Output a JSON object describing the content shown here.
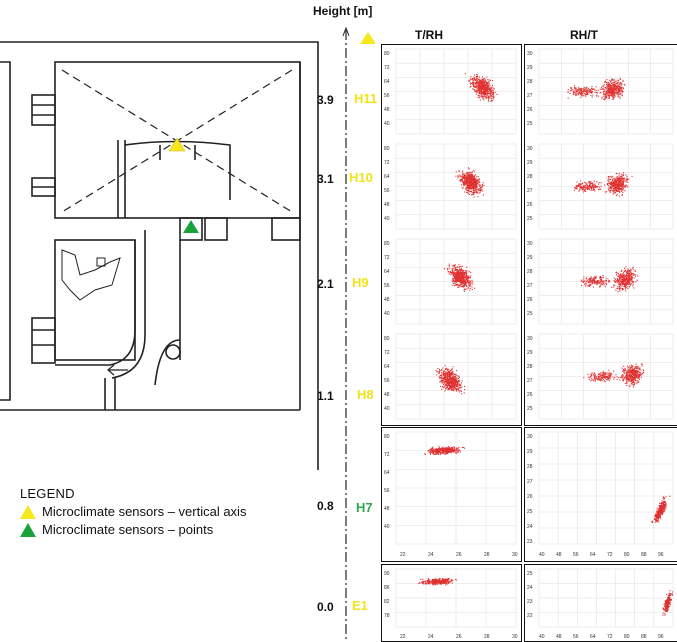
{
  "axis": {
    "title": "Height [m]"
  },
  "columns": [
    {
      "title": "T/RH"
    },
    {
      "title": "RH/T"
    }
  ],
  "levels": [
    {
      "height": "3.9",
      "sensor": "H11",
      "color": "#f2e21b"
    },
    {
      "height": "3.1",
      "sensor": "H10",
      "color": "#f2e21b"
    },
    {
      "height": "2.1",
      "sensor": "H9",
      "color": "#f2e21b"
    },
    {
      "height": "1.1",
      "sensor": "H8",
      "color": "#f2e21b"
    },
    {
      "height": "0.8",
      "sensor": "H7",
      "color": "#2fa84f"
    },
    {
      "height": "0.0",
      "sensor": "E1",
      "color": "#f2e21b"
    }
  ],
  "legend": {
    "title": "LEGEND",
    "items": [
      {
        "label": "Microclimate sensors – vertical axis",
        "color": "#f7e81e"
      },
      {
        "label": "Microclimate sensors – points",
        "color": "#1aa33a"
      }
    ]
  },
  "plots": {
    "trh_left_ticks": [
      "80",
      "72",
      "64",
      "56",
      "48",
      "40"
    ],
    "trh_bottom_ticks": [
      "22",
      "24",
      "26",
      "28",
      "30"
    ],
    "rht_left_ticks_upper": [
      "30",
      "29",
      "28",
      "27",
      "26",
      "25"
    ],
    "rht_left_ticks_lower": [
      "30",
      "29",
      "28",
      "27",
      "26",
      "25",
      "24",
      "23"
    ],
    "rht_bottom_ticks": [
      "40",
      "48",
      "56",
      "64",
      "72",
      "80",
      "88",
      "96"
    ],
    "point_color": "#e03030"
  }
}
